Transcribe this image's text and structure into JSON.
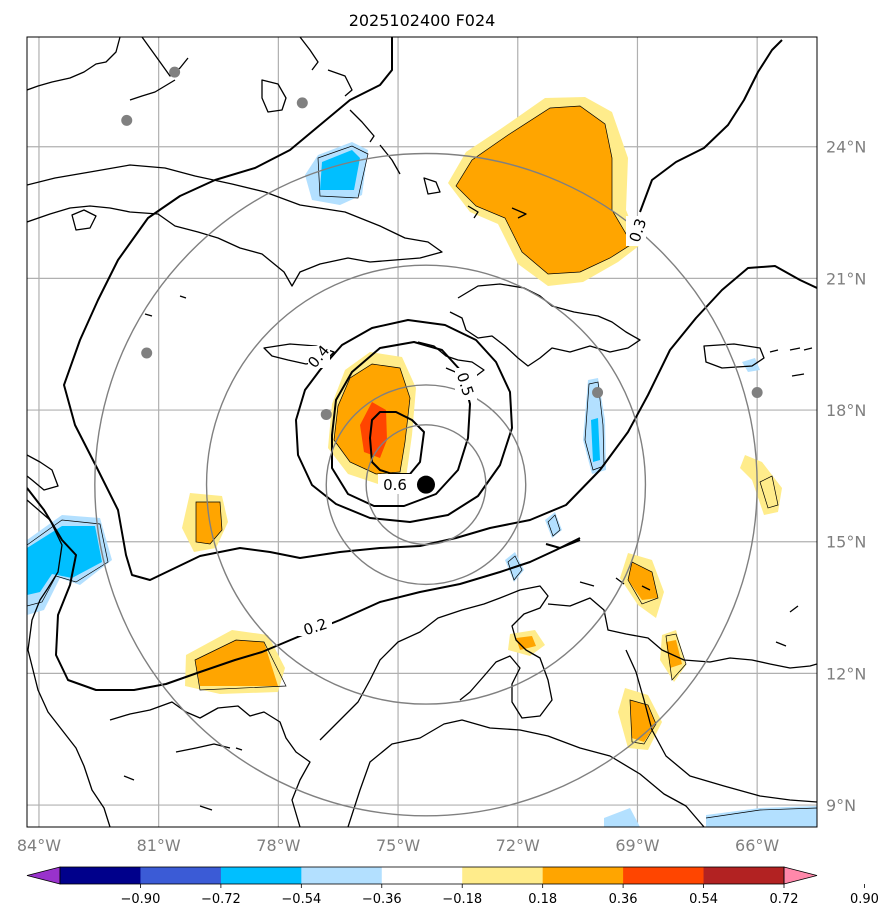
{
  "title": "2025102400 F024",
  "map": {
    "lon_range": [
      -84.3,
      -64.5
    ],
    "lat_range": [
      8.5,
      26.5
    ],
    "lon_ticks": [
      {
        "value": -84,
        "label": "84°W"
      },
      {
        "value": -81,
        "label": "81°W"
      },
      {
        "value": -78,
        "label": "78°W"
      },
      {
        "value": -75,
        "label": "75°W"
      },
      {
        "value": -72,
        "label": "72°W"
      },
      {
        "value": -69,
        "label": "69°W"
      },
      {
        "value": -66,
        "label": "66°W"
      }
    ],
    "lat_ticks": [
      {
        "value": 9,
        "label": "9°N"
      },
      {
        "value": 12,
        "label": "12°N"
      },
      {
        "value": 15,
        "label": "15°N"
      },
      {
        "value": 18,
        "label": "18°N"
      },
      {
        "value": 21,
        "label": "21°N"
      },
      {
        "value": 24,
        "label": "24°N"
      }
    ],
    "gridlines": true,
    "storm_center": {
      "lon": -74.3,
      "lat": 16.3
    },
    "range_rings_deg": [
      1.5,
      2.5,
      5.5,
      8.3
    ],
    "stations": [
      {
        "lon": -80.6,
        "lat": 25.7
      },
      {
        "lon": -81.8,
        "lat": 24.6
      },
      {
        "lon": -77.4,
        "lat": 25.0
      },
      {
        "lon": -81.3,
        "lat": 19.3
      },
      {
        "lon": -76.8,
        "lat": 17.9
      },
      {
        "lon": -70.0,
        "lat": 18.4
      },
      {
        "lon": -66.0,
        "lat": 18.4
      }
    ],
    "contour_labels": [
      "0.2",
      "0.3",
      "0.4",
      "0.5",
      "0.6"
    ]
  },
  "colorbar": {
    "colors": [
      "#9932cc",
      "#00008b",
      "#3b5bd6",
      "#00bfff",
      "#b3e0ff",
      "#ffffff",
      "#ffec8b",
      "#ffa500",
      "#ff4500",
      "#b22222",
      "#ff88aa"
    ],
    "tick_labels": [
      "−0.90",
      "−0.72",
      "−0.54",
      "−0.36",
      "−0.18",
      "0.18",
      "0.36",
      "0.54",
      "0.72",
      "0.90"
    ]
  }
}
